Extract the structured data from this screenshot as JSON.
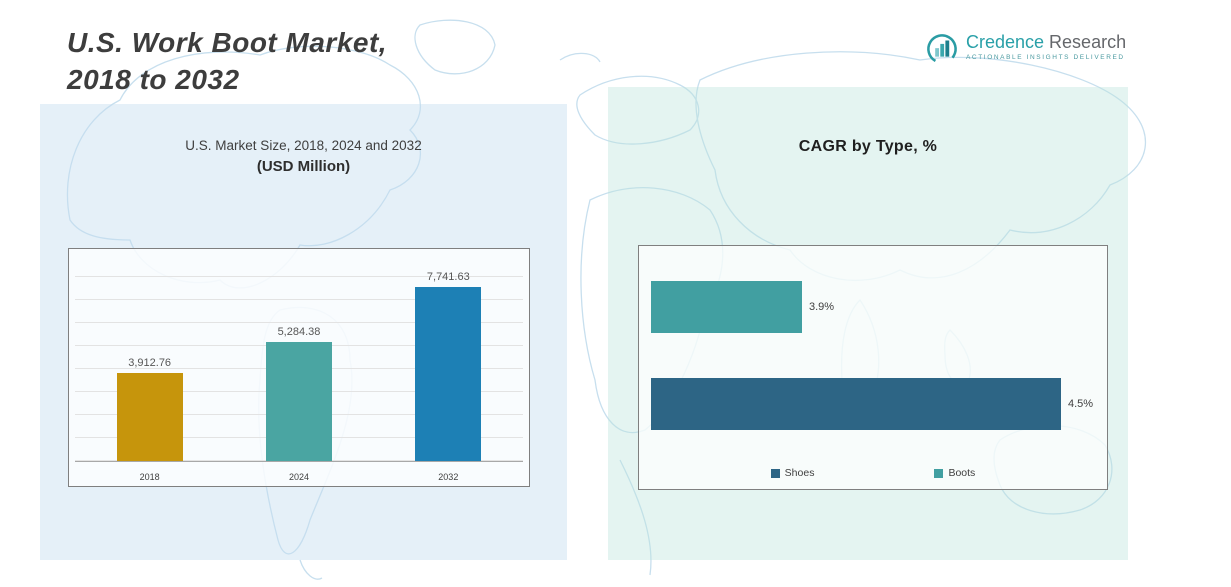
{
  "header": {
    "title_line1": "U.S. Work Boot Market,",
    "title_line2": "2018 to 2032"
  },
  "logo": {
    "brand_primary": "Credence",
    "brand_secondary": " Research",
    "tagline": "Actionable Insights Delivered"
  },
  "left_panel": {
    "subtitle": "U.S. Market Size, 2018, 2024 and 2032",
    "unit": "(USD Million)"
  },
  "right_panel": {
    "title": "CAGR by Type, %"
  },
  "chart_data": [
    {
      "type": "bar",
      "title": "U.S. Market Size, 2018, 2024 and 2032 (USD Million)",
      "categories": [
        "2018",
        "2024",
        "2032"
      ],
      "values": [
        3912.76,
        5284.38,
        7741.63
      ],
      "data_labels": [
        "3,912.76",
        "5,284.38",
        "7,741.63"
      ],
      "bar_colors": [
        "#c6950c",
        "#4aa5a2",
        "#1d80b5"
      ],
      "ylabel": "USD Million",
      "ylim": [
        0,
        8000
      ],
      "grid": true,
      "legend_position": "none"
    },
    {
      "type": "bar",
      "orientation": "horizontal",
      "title": "CAGR by Type, %",
      "categories": [
        "Boots",
        "Shoes"
      ],
      "values": [
        3.9,
        4.5
      ],
      "data_labels": [
        "3.9%",
        "4.5%"
      ],
      "bar_colors": [
        "#419fa1",
        "#2d6585"
      ],
      "xlim": [
        3.55,
        4.5
      ],
      "grid": false,
      "legend_position": "bottom",
      "legend": [
        {
          "label": "Shoes",
          "color": "#2d6585"
        },
        {
          "label": "Boots",
          "color": "#419fa1"
        }
      ]
    }
  ]
}
